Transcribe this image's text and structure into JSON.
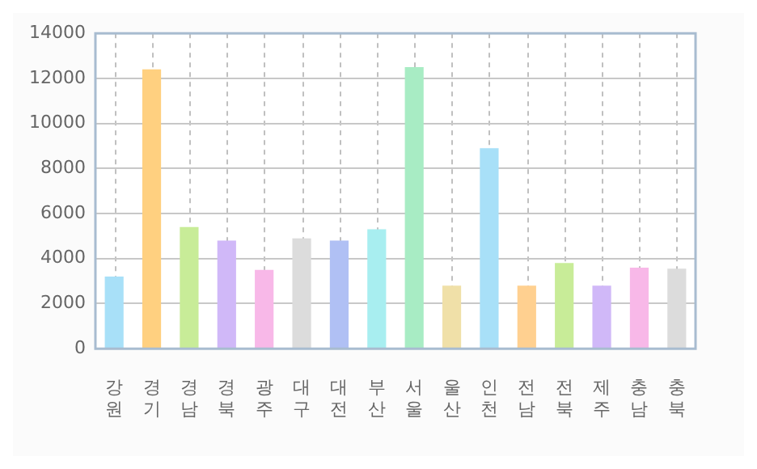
{
  "chart_data": {
    "type": "bar",
    "categories": [
      "강원",
      "경기",
      "경남",
      "경북",
      "광주",
      "대구",
      "대전",
      "부산",
      "서울",
      "울산",
      "인천",
      "전남",
      "전북",
      "제주",
      "충남",
      "충북"
    ],
    "values": [
      3200,
      12400,
      5400,
      4800,
      3500,
      4900,
      4800,
      5300,
      12500,
      2800,
      8900,
      2800,
      3800,
      2800,
      3600,
      3550
    ],
    "colors": [
      "#a8e0f8",
      "#ffd080",
      "#c8ec98",
      "#d0b8f8",
      "#f8b8e8",
      "#dcdcdc",
      "#b0c0f4",
      "#a8eef0",
      "#a8ecc4",
      "#f0e0a8",
      "#a8e0f8",
      "#ffd090",
      "#c8ec98",
      "#d0b8f8",
      "#f8b8e8",
      "#dcdcdc"
    ],
    "ylim": [
      0,
      14000
    ],
    "yticks": [
      0,
      2000,
      4000,
      6000,
      8000,
      10000,
      12000,
      14000
    ],
    "grid": true
  }
}
